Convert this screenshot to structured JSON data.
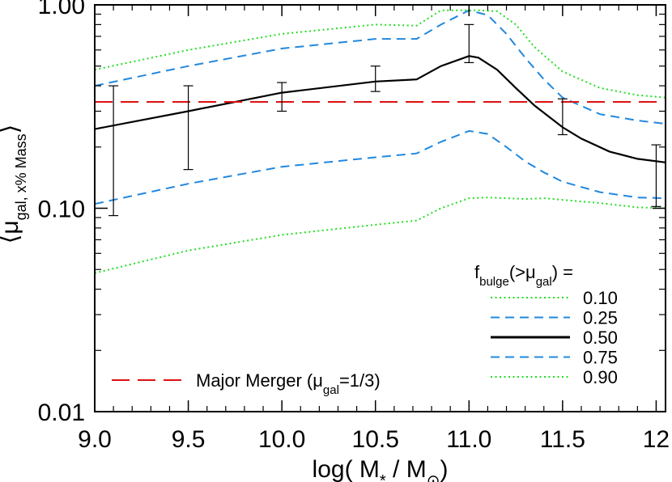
{
  "chart_data": {
    "type": "line",
    "xlabel_parts": [
      "log( M",
      "*",
      " / M",
      "⊙",
      ")"
    ],
    "ylabel_parts": [
      "⟨μ",
      "gal, x% Mass",
      "⟩"
    ],
    "xlim": [
      9.0,
      12.05
    ],
    "ylim": [
      0.01,
      1.0
    ],
    "yscale": "log",
    "x_ticks": [
      9.0,
      9.5,
      10.0,
      10.5,
      11.0,
      11.5,
      12.0
    ],
    "x_tick_labels": [
      "9.0",
      "9.5",
      "10.0",
      "10.5",
      "11.0",
      "11.5",
      "12"
    ],
    "y_ticks": [
      0.01,
      0.1,
      1.0
    ],
    "y_tick_labels": [
      "0.01",
      "0.10",
      "1.00"
    ],
    "legend_title_parts": [
      "f",
      "bulge",
      "(>μ",
      "gal",
      ") ="
    ],
    "legend_position": "bottom-right",
    "series": [
      {
        "name": "0.10",
        "style": "dotted",
        "color": "#22dd22",
        "x": [
          9.0,
          9.5,
          10.0,
          10.5,
          10.72,
          10.85,
          11.0,
          11.1,
          11.2,
          11.3,
          11.4,
          11.5,
          11.7,
          11.9,
          12.05
        ],
        "y": [
          0.048,
          0.062,
          0.074,
          0.083,
          0.087,
          0.1,
          0.112,
          0.113,
          0.112,
          0.111,
          0.112,
          0.11,
          0.106,
          0.101,
          0.1
        ]
      },
      {
        "name": "0.25",
        "style": "dashed",
        "color": "#2288dd",
        "x": [
          9.0,
          9.5,
          10.0,
          10.5,
          10.72,
          10.85,
          11.0,
          11.1,
          11.2,
          11.3,
          11.4,
          11.5,
          11.7,
          11.9,
          12.05
        ],
        "y": [
          0.105,
          0.132,
          0.16,
          0.178,
          0.186,
          0.212,
          0.24,
          0.232,
          0.2,
          0.17,
          0.15,
          0.135,
          0.12,
          0.113,
          0.112
        ]
      },
      {
        "name": "0.50",
        "style": "solid",
        "color": "#000000",
        "x": [
          9.0,
          9.5,
          10.0,
          10.5,
          10.72,
          10.85,
          11.0,
          11.05,
          11.15,
          11.25,
          11.35,
          11.5,
          11.6,
          11.75,
          11.9,
          12.05
        ],
        "y": [
          0.245,
          0.3,
          0.37,
          0.42,
          0.43,
          0.5,
          0.56,
          0.55,
          0.48,
          0.39,
          0.32,
          0.25,
          0.22,
          0.19,
          0.175,
          0.168
        ]
      },
      {
        "name": "0.75",
        "style": "dashed",
        "color": "#2288dd",
        "x": [
          9.0,
          9.5,
          10.0,
          10.5,
          10.72,
          10.85,
          11.0,
          11.1,
          11.2,
          11.3,
          11.4,
          11.5,
          11.7,
          11.9,
          12.05
        ],
        "y": [
          0.4,
          0.5,
          0.61,
          0.68,
          0.68,
          0.8,
          0.94,
          0.89,
          0.72,
          0.55,
          0.43,
          0.35,
          0.29,
          0.27,
          0.26
        ]
      },
      {
        "name": "0.90",
        "style": "dotted",
        "color": "#22dd22",
        "x": [
          9.0,
          9.5,
          10.0,
          10.5,
          10.72,
          10.85,
          11.0,
          11.05,
          11.15,
          11.25,
          11.35,
          11.5,
          11.7,
          11.9,
          12.05
        ],
        "y": [
          0.48,
          0.6,
          0.72,
          0.8,
          0.79,
          0.94,
          0.94,
          0.94,
          0.93,
          0.8,
          0.62,
          0.47,
          0.39,
          0.36,
          0.35
        ]
      }
    ],
    "reference_line": {
      "name_parts": [
        "Major Merger (μ",
        "gal",
        "=1/3)"
      ],
      "y": 0.3333,
      "style": "long-dashed",
      "color": "#dd1111"
    },
    "error_bars": [
      {
        "x": 9.1,
        "y_low": 0.092,
        "y_high": 0.4
      },
      {
        "x": 9.5,
        "y_low": 0.155,
        "y_high": 0.4
      },
      {
        "x": 10.0,
        "y_low": 0.3,
        "y_high": 0.415
      },
      {
        "x": 10.5,
        "y_low": 0.375,
        "y_high": 0.5
      },
      {
        "x": 11.0,
        "y_low": 0.52,
        "y_high": 0.8
      },
      {
        "x": 11.5,
        "y_low": 0.23,
        "y_high": 0.345
      },
      {
        "x": 12.0,
        "y_low": 0.102,
        "y_high": 0.205
      }
    ]
  }
}
